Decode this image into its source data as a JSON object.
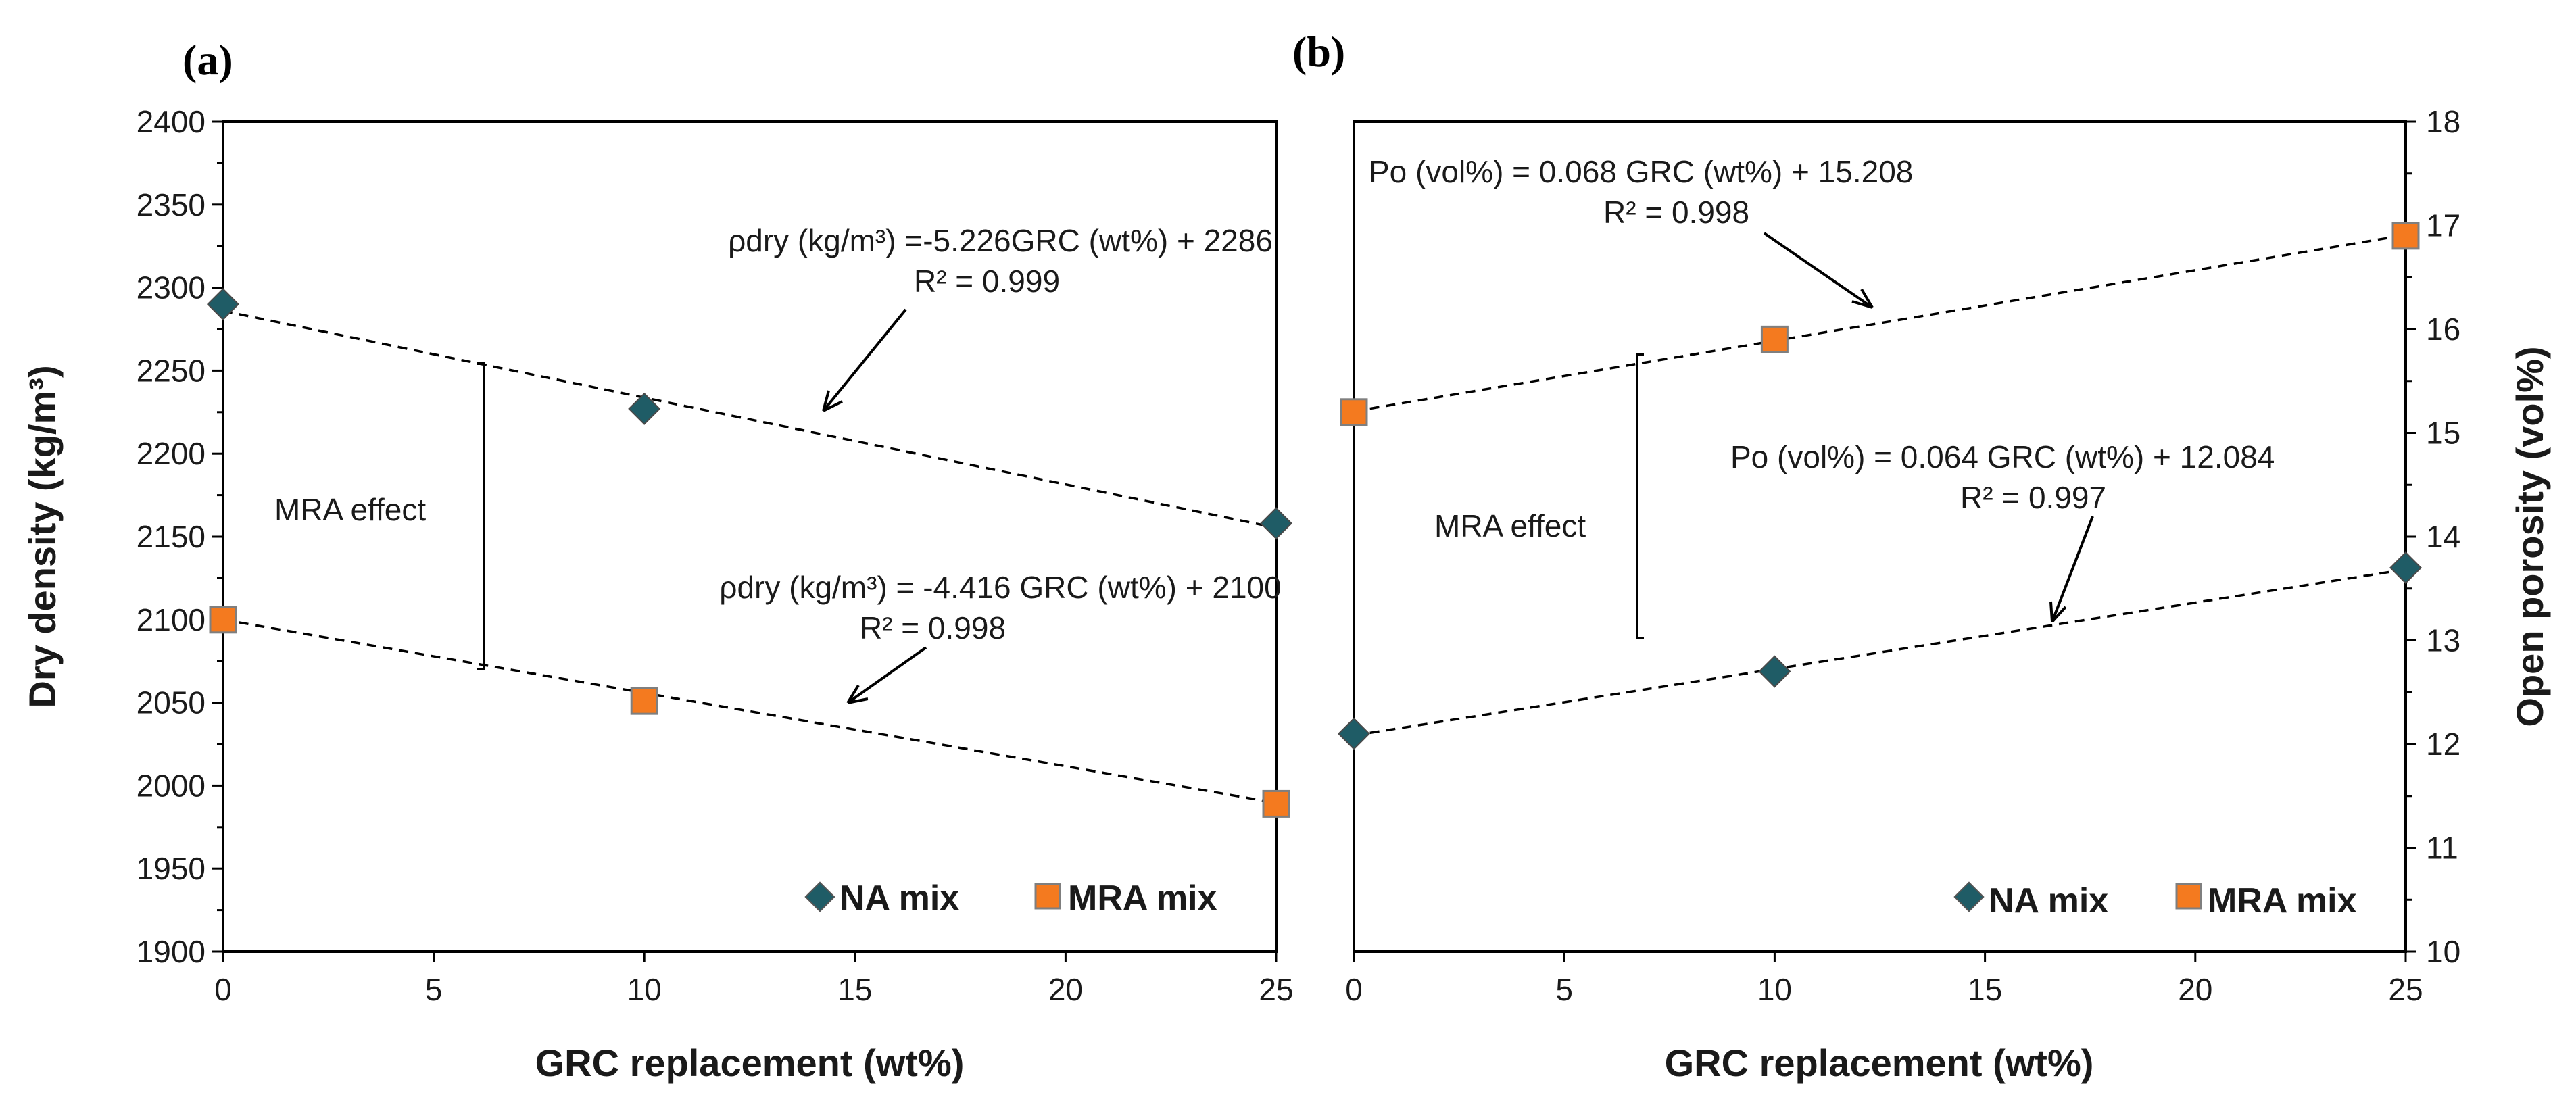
{
  "chart_data": [
    {
      "type": "scatter",
      "panel_label": "(a)",
      "xlabel": "GRC replacement (wt%)",
      "ylabel": "Dry density (kg/m³)",
      "xlim": [
        0,
        25
      ],
      "ylim": [
        1900,
        2400
      ],
      "xticks": [
        "0",
        "5",
        "10",
        "15",
        "20",
        "25"
      ],
      "yticks": [
        "1900",
        "1950",
        "2000",
        "2050",
        "2100",
        "2150",
        "2200",
        "2250",
        "2300",
        "2350",
        "2400"
      ],
      "y_axis_side": "left",
      "series": [
        {
          "name": "NA mix",
          "marker": "diamond",
          "color": "#1f5c66",
          "x": [
            0,
            10,
            25
          ],
          "y": [
            2290,
            2227,
            2158
          ],
          "trend": {
            "slope": -5.226,
            "intercept": 2286
          }
        },
        {
          "name": "MRA mix",
          "marker": "square",
          "color": "#f47a1f",
          "x": [
            0,
            10,
            25
          ],
          "y": [
            2100,
            2051,
            1989
          ],
          "trend": {
            "slope": -4.416,
            "intercept": 2100
          }
        }
      ],
      "annotations": [
        {
          "line1": "ρdry (kg/m³) =-5.226GRC (wt%) + 2286",
          "line2": "R² = 0.999"
        },
        {
          "line1": "ρdry (kg/m³) = -4.416 GRC (wt%) + 2100",
          "line2": "R² = 0.998"
        }
      ],
      "effect_label": "MRA effect",
      "legend": [
        "NA mix",
        "MRA mix"
      ],
      "legend_position": "bottom-right"
    },
    {
      "type": "scatter",
      "panel_label": "(b)",
      "xlabel": "GRC replacement (wt%)",
      "ylabel": "Open porosity (vol%)",
      "xlim": [
        0,
        25
      ],
      "ylim": [
        10,
        18
      ],
      "xticks": [
        "0",
        "5",
        "10",
        "15",
        "20",
        "25"
      ],
      "yticks": [
        "10",
        "11",
        "12",
        "13",
        "14",
        "15",
        "16",
        "17",
        "18"
      ],
      "y_axis_side": "right",
      "series": [
        {
          "name": "NA mix",
          "marker": "diamond",
          "color": "#1f5c66",
          "x": [
            0,
            10,
            25
          ],
          "y": [
            12.1,
            12.7,
            13.7
          ],
          "trend": {
            "slope": 0.064,
            "intercept": 12.084
          }
        },
        {
          "name": "MRA mix",
          "marker": "square",
          "color": "#f47a1f",
          "x": [
            0,
            10,
            25
          ],
          "y": [
            15.2,
            15.9,
            16.9
          ],
          "trend": {
            "slope": 0.068,
            "intercept": 15.208
          }
        }
      ],
      "annotations": [
        {
          "line1": "Po (vol%) = 0.068 GRC (wt%) + 15.208",
          "line2": "R² = 0.998"
        },
        {
          "line1": "Po (vol%) = 0.064 GRC (wt%) + 12.084",
          "line2": "R² = 0.997"
        }
      ],
      "effect_label": "MRA effect",
      "legend": [
        "NA mix",
        "MRA mix"
      ],
      "legend_position": "bottom-right"
    }
  ]
}
